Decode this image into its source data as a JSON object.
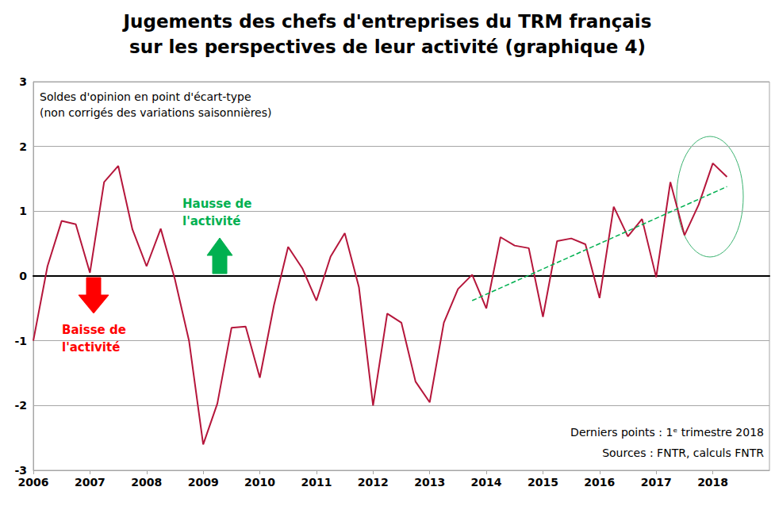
{
  "chart_data": {
    "type": "line",
    "title": "Jugements des chefs d'entreprises du TRM français\nsur les perspectives de leur activité (graphique 4)",
    "categories": [
      "2006",
      null,
      null,
      null,
      "2007",
      null,
      null,
      null,
      "2008",
      null,
      null,
      null,
      "2009",
      null,
      null,
      null,
      "2010",
      null,
      null,
      null,
      "2011",
      null,
      null,
      null,
      "2012",
      null,
      null,
      null,
      "2013",
      null,
      null,
      null,
      "2014",
      null,
      null,
      null,
      "2015",
      null,
      null,
      null,
      "2016",
      null,
      null,
      null,
      "2017",
      null,
      null,
      null,
      "2018",
      null,
      null,
      null,
      null
    ],
    "values": [
      -1.0,
      0.15,
      0.85,
      0.8,
      0.05,
      1.45,
      1.7,
      0.72,
      0.15,
      0.73,
      -0.05,
      -1.0,
      -2.6,
      -1.97,
      -0.8,
      -0.78,
      -1.57,
      -0.45,
      0.45,
      0.12,
      -0.38,
      0.3,
      0.66,
      -0.17,
      -2.0,
      -0.58,
      -0.72,
      -1.63,
      -1.95,
      -0.72,
      -0.2,
      0.02,
      -0.5,
      0.6,
      0.47,
      0.43,
      -0.63,
      0.54,
      0.58,
      0.49,
      -0.34,
      1.07,
      0.61,
      0.88,
      -0.02,
      1.45,
      0.63,
      1.1,
      1.74,
      1.53,
      null,
      null,
      null
    ],
    "color": "#b5163b",
    "ylim": [
      -3,
      3
    ],
    "yticks": [
      -3,
      -2,
      -1,
      0,
      1,
      2,
      3
    ],
    "grid": true,
    "trend": {
      "start_index": 31,
      "start": -0.38,
      "end_index": 49,
      "end": 1.38,
      "color": "#00b050",
      "line_style": "dashed"
    },
    "annotations": {
      "note": "Soldes d'opinion en point d'écart-type\n(non corrigés des variations saisonnières)",
      "up": "Hausse de\nl'activité",
      "down": "Baisse de\nl'activité",
      "last_points": "Derniers points : 1ᵉ trimestre 2018",
      "sources": "Sources : FNTR, calculs FNTR"
    }
  }
}
